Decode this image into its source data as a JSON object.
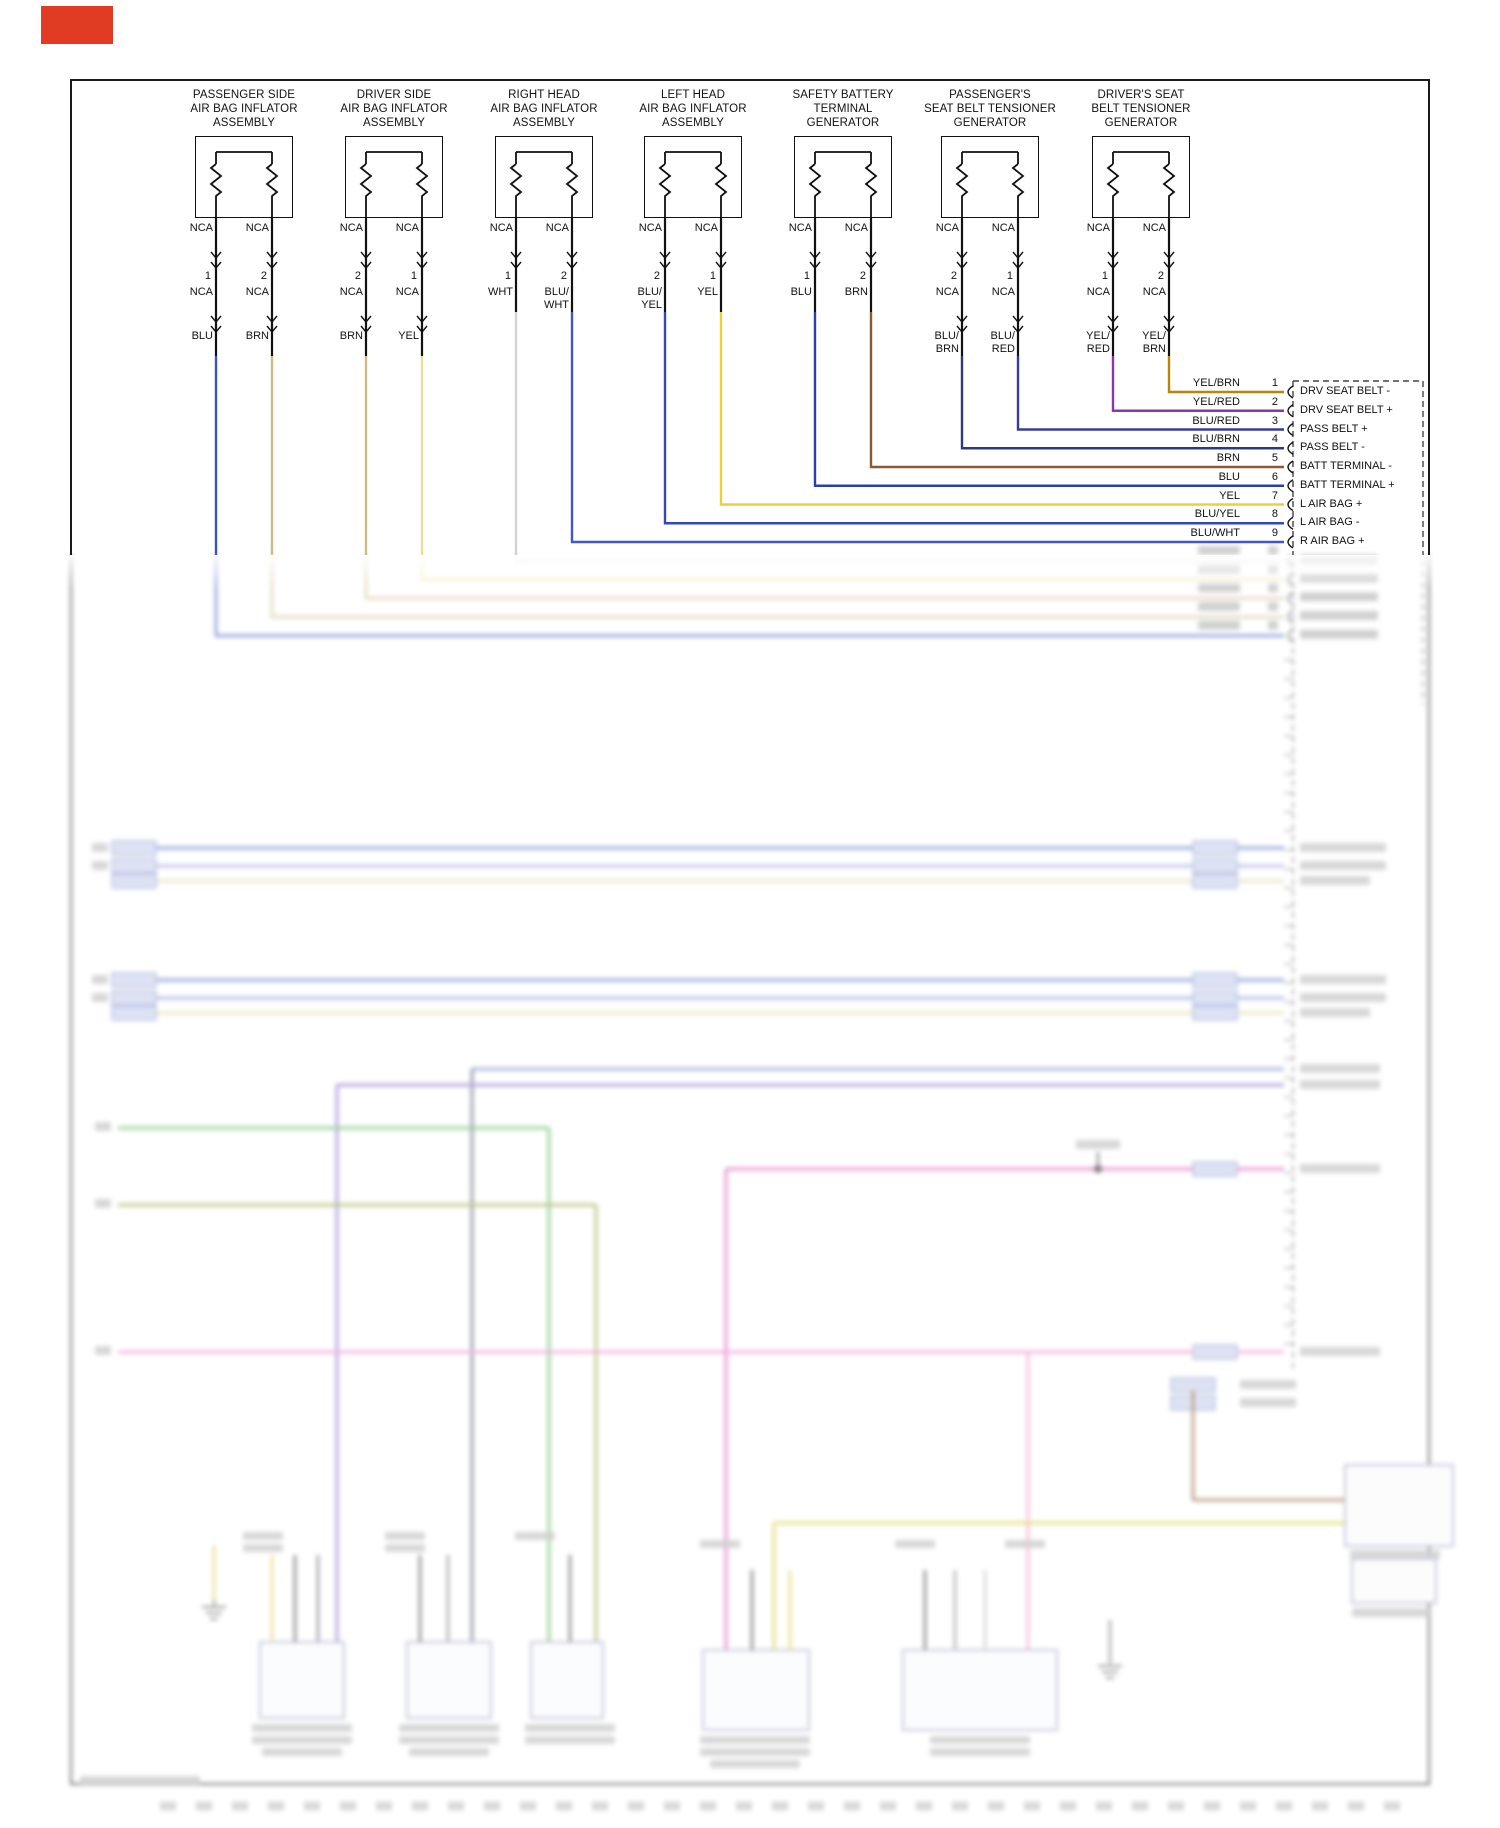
{
  "page": {
    "red_tab": "#e23b24"
  },
  "components": [
    {
      "title": "PASSENGER SIDE\nAIR BAG INFLATOR\nASSEMBLY",
      "leads": [
        {
          "top": "NCA",
          "pin": "1",
          "mid": "NCA",
          "color": "BLU",
          "wire": "#3b52c4",
          "row": 14
        },
        {
          "top": "NCA",
          "pin": "2",
          "mid": "NCA",
          "color": "BRN",
          "wire": "#ccbb88",
          "row": 13
        }
      ]
    },
    {
      "title": "DRIVER SIDE\nAIR BAG INFLATOR\nASSEMBLY",
      "leads": [
        {
          "top": "NCA",
          "pin": "2",
          "mid": "NCA",
          "color": "BRN",
          "wire": "#ccbb88",
          "row": 12
        },
        {
          "top": "NCA",
          "pin": "1",
          "mid": "NCA",
          "color": "YEL",
          "wire": "#e6e09a",
          "row": 11
        }
      ]
    },
    {
      "title": "RIGHT HEAD\nAIR BAG INFLATOR\nASSEMBLY",
      "leads": [
        {
          "top": "NCA",
          "pin": "1",
          "mid": "WHT",
          "wire": "#d2d2d2",
          "row": 10
        },
        {
          "top": "NCA",
          "pin": "2",
          "mid": "BLU/\nWHT",
          "wire": "#4356c8",
          "row": 9
        }
      ]
    },
    {
      "title": "LEFT HEAD\nAIR BAG INFLATOR\nASSEMBLY",
      "leads": [
        {
          "top": "NCA",
          "pin": "2",
          "mid": "BLU/\nYEL",
          "wire": "#3548b8",
          "row": 8
        },
        {
          "top": "NCA",
          "pin": "1",
          "mid": "YEL",
          "wire": "#e8d23c",
          "row": 7
        }
      ]
    },
    {
      "title": "SAFETY BATTERY\nTERMINAL\nGENERATOR",
      "leads": [
        {
          "top": "NCA",
          "pin": "1",
          "mid": "BLU",
          "wire": "#2b3fa8",
          "row": 6
        },
        {
          "top": "NCA",
          "pin": "2",
          "mid": "BRN",
          "wire": "#8a5a33",
          "row": 5
        }
      ]
    },
    {
      "title": "PASSENGER'S\nSEAT BELT TENSIONER\nGENERATOR",
      "leads": [
        {
          "top": "NCA",
          "pin": "2",
          "mid": "NCA",
          "color": "BLU/\nBRN",
          "wire": "#2b3a7a",
          "row": 4
        },
        {
          "top": "NCA",
          "pin": "1",
          "mid": "NCA",
          "color": "BLU/\nRED",
          "wire": "#3a3a9e",
          "row": 3
        }
      ]
    },
    {
      "title": "DRIVER'S SEAT\nBELT TENSIONER\nGENERATOR",
      "leads": [
        {
          "top": "NCA",
          "pin": "1",
          "mid": "NCA",
          "color": "YEL/\nRED",
          "wire": "#8639a8",
          "row": 2
        },
        {
          "top": "NCA",
          "pin": "2",
          "mid": "NCA",
          "color": "YEL/\nBRN",
          "wire": "#b8860b",
          "row": 1
        }
      ]
    }
  ],
  "connector": {
    "rows": [
      {
        "pin": "1",
        "wire": "YEL/BRN",
        "label": "DRV SEAT BELT -"
      },
      {
        "pin": "2",
        "wire": "YEL/RED",
        "label": "DRV SEAT BELT +"
      },
      {
        "pin": "3",
        "wire": "BLU/RED",
        "label": "PASS BELT +"
      },
      {
        "pin": "4",
        "wire": "BLU/BRN",
        "label": "PASS BELT -"
      },
      {
        "pin": "5",
        "wire": "BRN",
        "label": "BATT TERMINAL -"
      },
      {
        "pin": "6",
        "wire": "BLU",
        "label": "BATT TERMINAL +"
      },
      {
        "pin": "7",
        "wire": "YEL",
        "label": "L AIR BAG +"
      },
      {
        "pin": "8",
        "wire": "BLU/YEL",
        "label": "L AIR BAG -"
      },
      {
        "pin": "9",
        "wire": "BLU/WHT",
        "label": "R AIR BAG +"
      }
    ]
  }
}
